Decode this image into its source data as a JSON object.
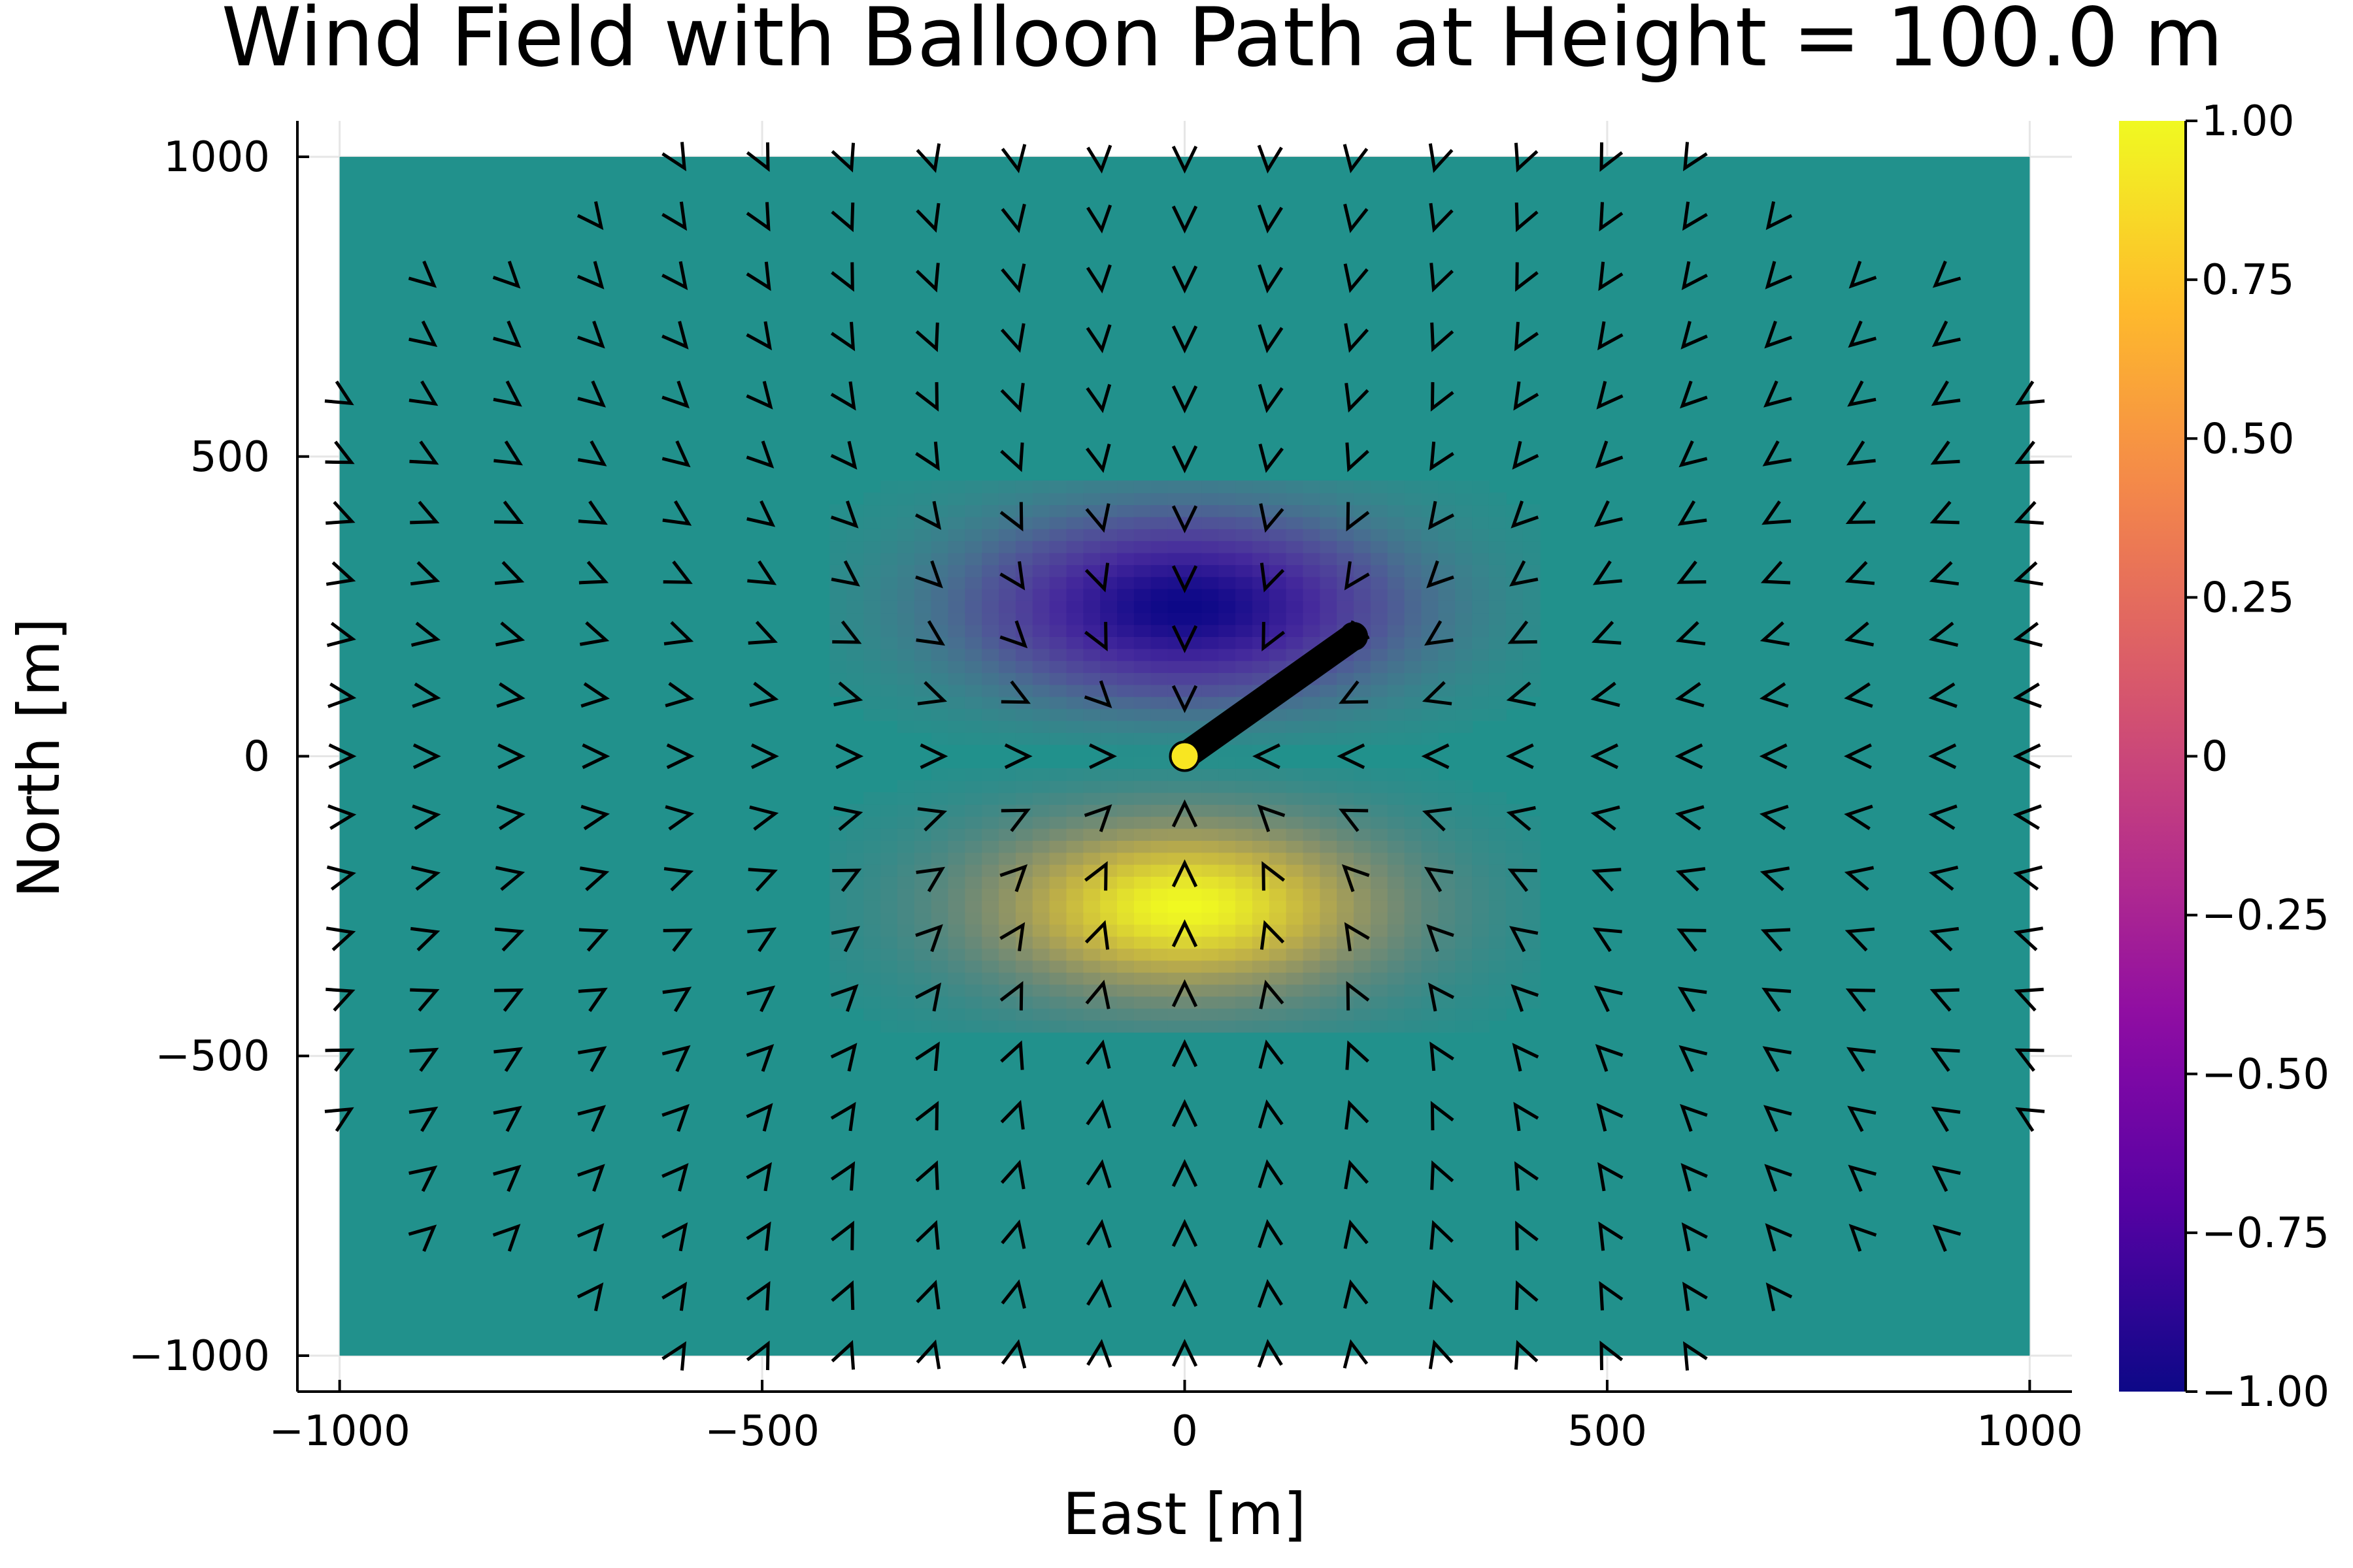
{
  "chart_data": {
    "type": "heatmap",
    "title": "Wind Field with Balloon Path at Height = 100.0 m",
    "xlabel": "East [m]",
    "ylabel": "North [m]",
    "xlim": [
      -1050,
      1050
    ],
    "ylim": [
      -1060,
      1060
    ],
    "data_extent": {
      "x": [
        -1000,
        1000
      ],
      "y": [
        -1000,
        1000
      ]
    },
    "xticks": [
      -1000,
      -500,
      0,
      500,
      1000
    ],
    "yticks": [
      -1000,
      -500,
      0,
      500,
      1000
    ],
    "xtick_labels": [
      "−1000",
      "−500",
      "0",
      "500",
      "1000"
    ],
    "ytick_labels": [
      "−1000",
      "−500",
      "0",
      "500",
      "1000"
    ],
    "grid": true,
    "colorbar": {
      "colormap": "plasma",
      "range": [
        -1.0,
        1.0
      ],
      "ticks": [
        1.0,
        0.75,
        0.5,
        0.25,
        0,
        -0.25,
        -0.5,
        -0.75,
        -1.0
      ],
      "tick_labels": [
        "1.00",
        "0.75",
        "0.50",
        "0.25",
        "0",
        "−0.25",
        "−0.50",
        "−0.75",
        "−1.00"
      ]
    },
    "field": {
      "description": "vertical wind dipole",
      "background_value": 0.0,
      "lobes": [
        {
          "center": [
            0,
            250
          ],
          "value": -1.0,
          "radius_x": 260,
          "radius_y": 160
        },
        {
          "center": [
            0,
            -250
          ],
          "value": 1.0,
          "radius_x": 260,
          "radius_y": 160
        }
      ]
    },
    "wind_barbs": {
      "x": [
        -1000,
        -900,
        -800,
        -700,
        -600,
        -500,
        -400,
        -300,
        -200,
        -100,
        0,
        100,
        200,
        300,
        400,
        500,
        600,
        700,
        800,
        900,
        1000
      ],
      "y": [
        1000,
        900,
        800,
        700,
        600,
        500,
        400,
        300,
        200,
        100,
        0,
        -100,
        -200,
        -300,
        -400,
        -500,
        -600,
        -700,
        -800,
        -900,
        -1000
      ],
      "shape": "converging toward origin",
      "color": "#000000"
    },
    "balloon_path": {
      "x": [
        0,
        50,
        100,
        150,
        200
      ],
      "y": [
        0,
        50,
        100,
        150,
        200
      ],
      "color": "#000000",
      "start_marker_color": "#f8e621",
      "end_marker_color": "#000000"
    },
    "colors": {
      "background_field": "#21918c",
      "path": "#000000",
      "start_marker": "#f8e621"
    }
  }
}
